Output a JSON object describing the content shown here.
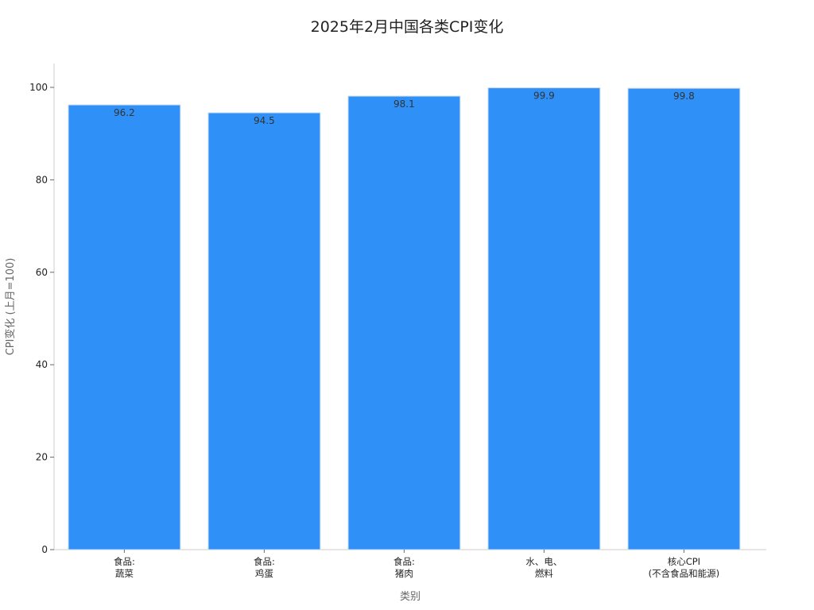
{
  "chart_data": {
    "type": "bar",
    "title": "2025年2月中国各类CPI变化",
    "xlabel": "类别",
    "ylabel": "CPI变化 (上月=100)",
    "ylim": [
      0,
      105
    ],
    "yticks": [
      0,
      20,
      40,
      60,
      80,
      100
    ],
    "categories": [
      [
        "食品:",
        "蔬菜"
      ],
      [
        "食品:",
        "鸡蛋"
      ],
      [
        "食品:",
        "猪肉"
      ],
      [
        "水、电、",
        "燃料"
      ],
      [
        "核心CPI",
        "(不含食品和能源)"
      ]
    ],
    "values": [
      96.2,
      94.5,
      98.1,
      99.9,
      99.8
    ],
    "data_labels": [
      "96.2",
      "94.5",
      "98.1",
      "99.9",
      "99.8"
    ],
    "bar_color": "#2f91f7",
    "grid": false,
    "legend": "none"
  }
}
